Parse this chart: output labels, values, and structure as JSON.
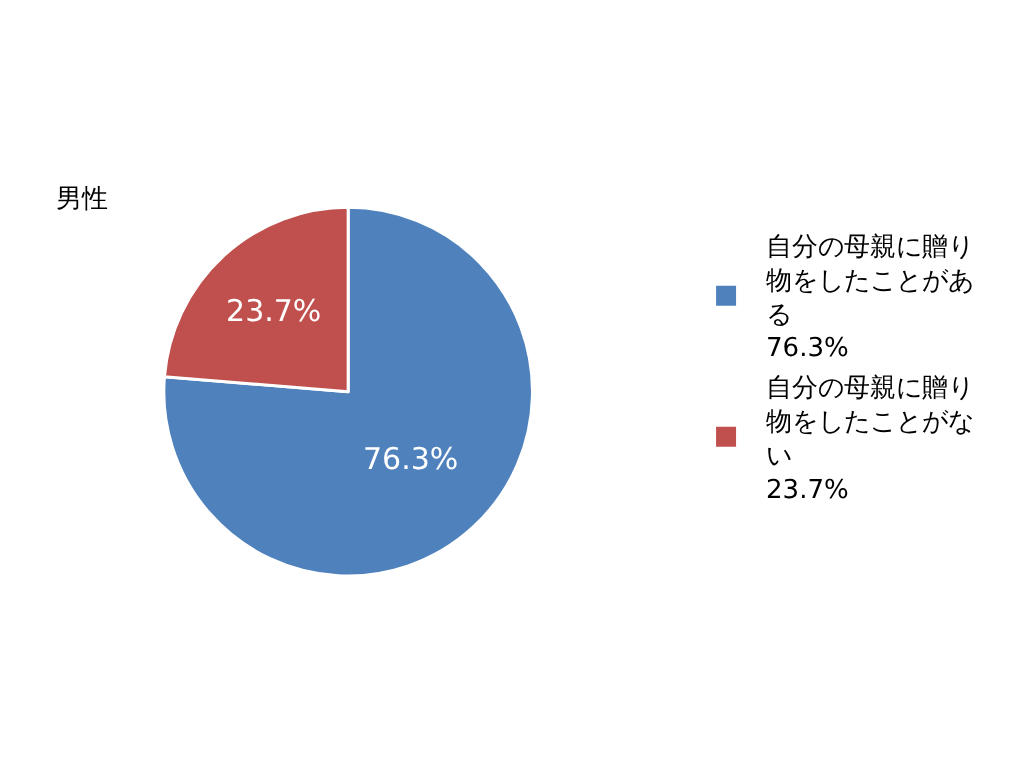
{
  "chart_data": {
    "type": "pie",
    "title": "男性",
    "categories": [
      "自分の母親に贈り物をしたことがある",
      "自分の母親に贈り物をしたことがない"
    ],
    "values": [
      76.3,
      23.7
    ],
    "colors": [
      "#4f81bd",
      "#c0504d"
    ],
    "value_labels": [
      "76.3%",
      "23.7%"
    ],
    "legend": "right"
  }
}
